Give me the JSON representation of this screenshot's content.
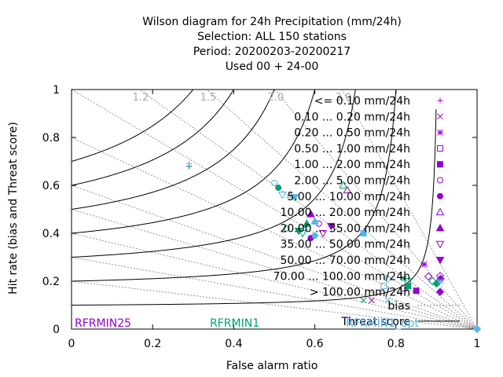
{
  "chart_data": {
    "type": "scatter",
    "title": [
      "Wilson diagram  for 24h Precipitation (mm/24h)",
      "Selection: ALL    150 stations",
      "Period: 20200203-20200217",
      "Used  00 + 24-00"
    ],
    "xlabel": "False alarm ratio",
    "ylabel": "Hit rate (bias and Threat score)",
    "xlim": [
      0,
      1
    ],
    "ylim": [
      0,
      1
    ],
    "xticks": [
      "0",
      "0.2",
      "0.4",
      "0.6",
      "0.8",
      "1"
    ],
    "yticks": [
      "0",
      "0.2",
      "0.4",
      "0.6",
      "0.8",
      "1"
    ],
    "bias_lines": [
      {
        "label": "1.2",
        "value": 1.2
      },
      {
        "label": "1.5",
        "value": 1.5
      },
      {
        "label": "2.0",
        "value": 2.0
      },
      {
        "label": "3.0",
        "value": 3.0
      },
      {
        "value": 1.0
      },
      {
        "value": 0.8
      },
      {
        "value": 0.6
      },
      {
        "value": 0.5
      },
      {
        "value": 0.4
      },
      {
        "value": 0.3
      },
      {
        "value": 0.2
      }
    ],
    "threat_lines": [
      0.1,
      0.2,
      0.3,
      0.4,
      0.5,
      0.6,
      0.7
    ],
    "legend": {
      "placement": "top-right",
      "entries": [
        {
          "label": "<= 0.10 mm/24h",
          "symbol": "plus"
        },
        {
          "label": "0.10 ... 0.20 mm/24h",
          "symbol": "cross"
        },
        {
          "label": "0.20 ... 0.50 mm/24h",
          "symbol": "star"
        },
        {
          "label": "0.50 ... 1.00 mm/24h",
          "symbol": "square-open"
        },
        {
          "label": "1.00 ... 2.00 mm/24h",
          "symbol": "square"
        },
        {
          "label": "2.00 ... 5.00 mm/24h",
          "symbol": "circle-open"
        },
        {
          "label": "5.00 ... 10.00 mm/24h",
          "symbol": "circle"
        },
        {
          "label": "10.00 ... 20.00 mm/24h",
          "symbol": "triangle-open"
        },
        {
          "label": "20.00 ... 35.00 mm/24h",
          "symbol": "triangle"
        },
        {
          "label": "35.00 ... 50.00 mm/24h",
          "symbol": "triangle-down-open"
        },
        {
          "label": "50.00 ... 70.00 mm/24h",
          "symbol": "triangle-down"
        },
        {
          "label": "70.00 ... 100.00 mm/24h",
          "symbol": "diamond-open"
        },
        {
          "label": "> 100.00 mm/24h",
          "symbol": "diamond"
        }
      ],
      "bias_label": "bias",
      "threat_label": "Threat score"
    },
    "series": [
      {
        "name": "RFRMIN25",
        "color": "#9400d3",
        "points": [
          {
            "x": 0.29,
            "y": 0.68,
            "symbol": "plus"
          },
          {
            "x": 0.74,
            "y": 0.12,
            "symbol": "cross"
          },
          {
            "x": 0.87,
            "y": 0.27,
            "symbol": "star"
          },
          {
            "x": 0.82,
            "y": 0.17,
            "symbol": "square-open"
          },
          {
            "x": 0.85,
            "y": 0.16,
            "symbol": "square"
          },
          {
            "x": 0.61,
            "y": 0.44,
            "symbol": "circle-open"
          },
          {
            "x": 0.59,
            "y": 0.38,
            "symbol": "circle"
          },
          {
            "x": 0.68,
            "y": 0.58,
            "symbol": "triangle-open"
          },
          {
            "x": 0.59,
            "y": 0.48,
            "symbol": "triangle"
          },
          {
            "x": 0.62,
            "y": 0.4,
            "symbol": "triangle-down-open"
          },
          {
            "x": 0.64,
            "y": 0.43,
            "symbol": "triangle-down"
          },
          {
            "x": 0.88,
            "y": 0.22,
            "symbol": "diamond-open"
          },
          {
            "x": 0.91,
            "y": 0.21,
            "symbol": "diamond"
          }
        ]
      },
      {
        "name": "RFRMIN1",
        "color": "#009e73",
        "points": [
          {
            "x": 0.29,
            "y": 0.68,
            "symbol": "plus"
          },
          {
            "x": 0.72,
            "y": 0.12,
            "symbol": "cross"
          },
          {
            "x": 0.82,
            "y": 0.21,
            "symbol": "star"
          },
          {
            "x": 0.83,
            "y": 0.2,
            "symbol": "square-open"
          },
          {
            "x": 0.83,
            "y": 0.18,
            "symbol": "square"
          },
          {
            "x": 0.53,
            "y": 0.42,
            "symbol": "circle-open"
          },
          {
            "x": 0.51,
            "y": 0.59,
            "symbol": "circle"
          },
          {
            "x": 0.67,
            "y": 0.6,
            "symbol": "triangle-open"
          },
          {
            "x": 0.58,
            "y": 0.44,
            "symbol": "triangle"
          },
          {
            "x": 0.57,
            "y": 0.4,
            "symbol": "triangle-down-open"
          },
          {
            "x": 0.56,
            "y": 0.41,
            "symbol": "triangle-down"
          },
          {
            "x": 0.89,
            "y": 0.2,
            "symbol": "diamond-open"
          },
          {
            "x": 0.9,
            "y": 0.19,
            "symbol": "diamond"
          }
        ]
      },
      {
        "name": "RFRMIN1_opt",
        "color": "#56b4e9",
        "points": [
          {
            "x": 0.29,
            "y": 0.69,
            "symbol": "plus"
          },
          {
            "x": 0.78,
            "y": 0.12,
            "symbol": "cross"
          },
          {
            "x": 0.91,
            "y": 0.2,
            "symbol": "star"
          },
          {
            "x": 0.77,
            "y": 0.18,
            "symbol": "square-open"
          },
          {
            "x": 0.72,
            "y": 0.4,
            "symbol": "square"
          },
          {
            "x": 0.5,
            "y": 0.61,
            "symbol": "circle-open"
          },
          {
            "x": 0.6,
            "y": 0.39,
            "symbol": "circle"
          },
          {
            "x": 0.54,
            "y": 0.56,
            "symbol": "triangle-open"
          },
          {
            "x": 0.6,
            "y": 0.45,
            "symbol": "triangle"
          },
          {
            "x": 0.52,
            "y": 0.56,
            "symbol": "triangle-down-open"
          },
          {
            "x": 0.55,
            "y": 0.55,
            "symbol": "triangle-down"
          },
          {
            "x": 0.78,
            "y": 0.21,
            "symbol": "diamond-open"
          },
          {
            "x": 1.0,
            "y": 0.0,
            "symbol": "diamond"
          }
        ]
      }
    ],
    "model_labels": [
      {
        "label": "RFRMIN25",
        "color": "#9400d3"
      },
      {
        "label": "RFRMIN1",
        "color": "#009e73"
      },
      {
        "label": "RFRMIN1_opt",
        "color": "#56b4e9"
      }
    ]
  }
}
